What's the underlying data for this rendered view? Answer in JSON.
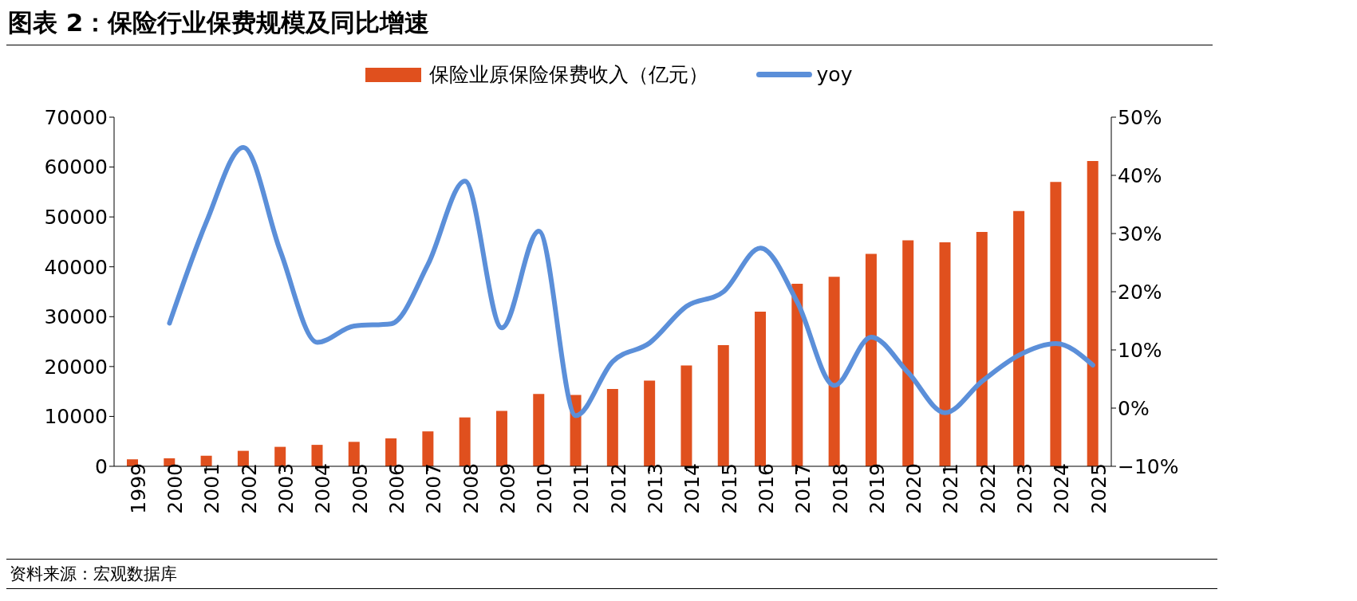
{
  "chart_data": {
    "type": "bar",
    "title": "图表 2：保险行业保费规模及同比增速",
    "categories": [
      "1999",
      "2000",
      "2001",
      "2002",
      "2003",
      "2004",
      "2005",
      "2006",
      "2007",
      "2008",
      "2009",
      "2010",
      "2011",
      "2012",
      "2013",
      "2014",
      "2015",
      "2016",
      "2017",
      "2018",
      "2019",
      "2020",
      "2021",
      "2022",
      "2023",
      "2024",
      "2025"
    ],
    "series": [
      {
        "name": "保险业原保险保费收入（亿元）",
        "color": "#e0501e",
        "values": [
          1400,
          1600,
          2100,
          3100,
          3900,
          4300,
          4900,
          5600,
          7000,
          9800,
          11100,
          14500,
          14300,
          15500,
          17200,
          20200,
          24300,
          31000,
          36600,
          38000,
          42600,
          45300,
          44900,
          47000,
          51200,
          57000,
          61200
        ]
      },
      {
        "name": "yoy",
        "type": "line",
        "axis": "y2",
        "color": "#5b8fd9",
        "values": [
          null,
          14.6,
          32,
          44.8,
          27,
          11.3,
          14.1,
          14.5,
          24.7,
          39,
          13.8,
          30.4,
          -1.3,
          8,
          11.2,
          17.5,
          20,
          27.5,
          18.2,
          3.9,
          12.2,
          6.1,
          -0.8,
          4.6,
          9.1,
          11.1,
          7.4
        ]
      }
    ],
    "ylim": [
      0,
      70000
    ],
    "yticks": [
      0,
      10000,
      20000,
      30000,
      40000,
      50000,
      60000,
      70000
    ],
    "y2lim": [
      -10,
      50
    ],
    "y2ticks": [
      {
        "value": -10,
        "label": "−10%"
      },
      {
        "value": 0,
        "label": "0%"
      },
      {
        "value": 10,
        "label": "10%"
      },
      {
        "value": 20,
        "label": "20%"
      },
      {
        "value": 30,
        "label": "30%"
      },
      {
        "value": 40,
        "label": "40%"
      },
      {
        "value": 50,
        "label": "50%"
      }
    ],
    "legend": "top",
    "marker": "none",
    "line_style": "solid",
    "annotations": [
      "资料来源：宏观数据库"
    ]
  }
}
